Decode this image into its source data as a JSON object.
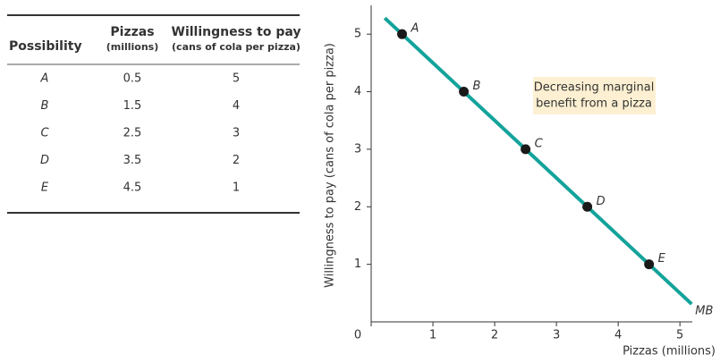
{
  "table": {
    "columns": [
      [
        "Possibility"
      ],
      [
        "Pizzas",
        "(millions)"
      ],
      [
        "Willingness to pay",
        "(cans of cola per pizza)"
      ]
    ],
    "rows": [
      [
        "A",
        "0.5",
        "5"
      ],
      [
        "B",
        "1.5",
        "4"
      ],
      [
        "C",
        "2.5",
        "3"
      ],
      [
        "D",
        "3.5",
        "2"
      ],
      [
        "E",
        "4.5",
        "1"
      ]
    ]
  },
  "chart_data": {
    "type": "line",
    "x_label": "Pizzas (millions)",
    "y_label": "Willingness to pay (cans of cola per pizza)",
    "xlim": [
      0,
      5.2
    ],
    "ylim": [
      0,
      5.5
    ],
    "xticks": [
      0,
      1,
      2,
      3,
      4,
      5
    ],
    "yticks": [
      1,
      2,
      3,
      4,
      5
    ],
    "series": [
      {
        "name": "MB",
        "color": "#13a39b",
        "x": [
          0.22,
          5.19
        ],
        "values": [
          5.28,
          0.31
        ]
      }
    ],
    "points": {
      "labels": [
        "A",
        "B",
        "C",
        "D",
        "E"
      ],
      "x": [
        0.5,
        1.5,
        2.5,
        3.5,
        4.5
      ],
      "values": [
        5,
        4,
        3,
        2,
        1
      ],
      "color": "#1a1a1a"
    },
    "annotation": [
      "Decreasing marginal",
      "benefit from a pizza"
    ]
  }
}
